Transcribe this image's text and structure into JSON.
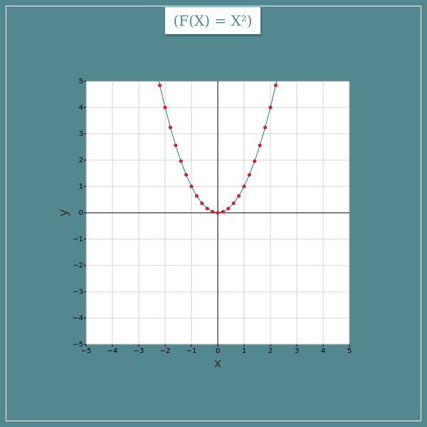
{
  "title": "(F(X) = X²)",
  "chart_data": {
    "type": "line",
    "xlabel": "x",
    "ylabel": "y",
    "xlim": [
      -5,
      5
    ],
    "ylim": [
      -5,
      5
    ],
    "xticks": [
      {
        "value": -5,
        "label": "−5"
      },
      {
        "value": -4,
        "label": "−4"
      },
      {
        "value": -3,
        "label": "−3"
      },
      {
        "value": -2,
        "label": "−2"
      },
      {
        "value": -1,
        "label": "−1"
      },
      0,
      1,
      2,
      3,
      4,
      5
    ],
    "yticks": [
      {
        "value": -5,
        "label": "−5"
      },
      {
        "value": -4,
        "label": "−4"
      },
      {
        "value": -3,
        "label": "−3"
      },
      {
        "value": -2,
        "label": "−2"
      },
      {
        "value": -1,
        "label": "−1"
      },
      0,
      1,
      2,
      3,
      4,
      5
    ],
    "grid": true,
    "series": [
      {
        "type": "line",
        "color": "#1f77b4",
        "x": [
          -2.24,
          -2.2,
          -2.0,
          -1.8,
          -1.6,
          -1.4,
          -1.2,
          -1.0,
          -0.8,
          -0.6,
          -0.4,
          -0.2,
          0,
          0.2,
          0.4,
          0.6,
          0.8,
          1.0,
          1.2,
          1.4,
          1.6,
          1.8,
          2.0,
          2.2,
          2.24
        ],
        "values": [
          5.02,
          4.84,
          4,
          3.24,
          2.56,
          1.96,
          1.44,
          1,
          0.64,
          0.36,
          0.16,
          0.04,
          0,
          0.04,
          0.16,
          0.36,
          0.64,
          1,
          1.44,
          1.96,
          2.56,
          3.24,
          4,
          4.84,
          5.02
        ]
      },
      {
        "type": "scatter",
        "color": "#d62728",
        "x": [
          -2.2,
          -2.0,
          -1.8,
          -1.6,
          -1.4,
          -1.2,
          -1.0,
          -0.8,
          -0.6,
          -0.4,
          -0.2,
          0,
          0.2,
          0.4,
          0.6,
          0.8,
          1.0,
          1.2,
          1.4,
          1.6,
          1.8,
          2.0,
          2.2
        ],
        "values": [
          4.84,
          4,
          3.24,
          2.56,
          1.96,
          1.44,
          1,
          0.64,
          0.36,
          0.16,
          0.04,
          0,
          0.04,
          0.16,
          0.36,
          0.64,
          1,
          1.44,
          1.96,
          2.56,
          3.24,
          4,
          4.84
        ]
      }
    ]
  }
}
